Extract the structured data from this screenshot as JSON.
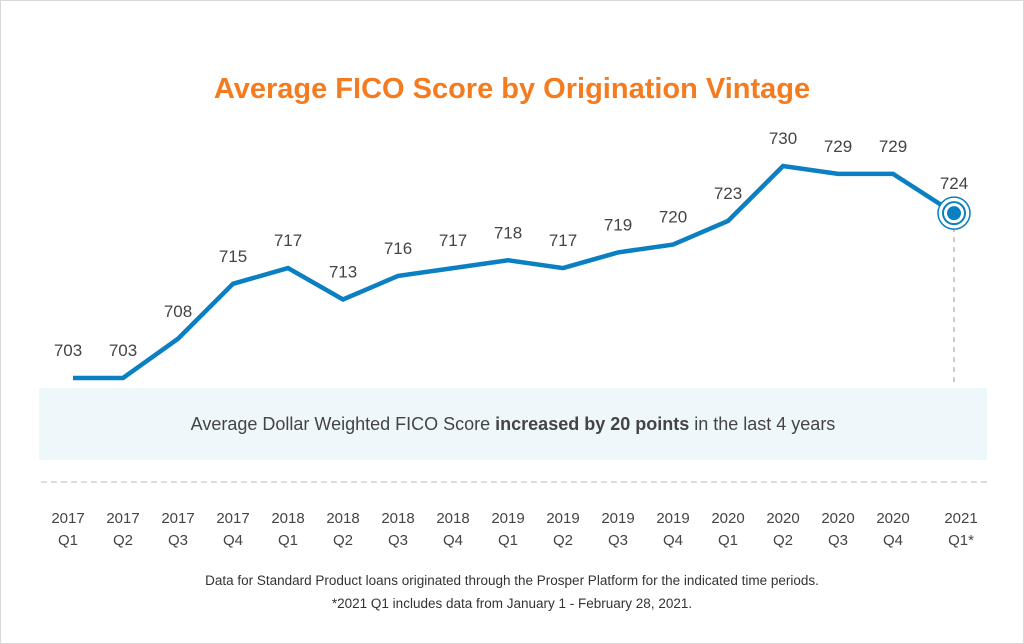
{
  "chart_data": {
    "type": "line",
    "title": "Average FICO Score by Origination Vintage",
    "categories": [
      [
        "2017",
        "Q1"
      ],
      [
        "2017",
        "Q2"
      ],
      [
        "2017",
        "Q3"
      ],
      [
        "2017",
        "Q4"
      ],
      [
        "2018",
        "Q1"
      ],
      [
        "2018",
        "Q2"
      ],
      [
        "2018",
        "Q3"
      ],
      [
        "2018",
        "Q4"
      ],
      [
        "2019",
        "Q1"
      ],
      [
        "2019",
        "Q2"
      ],
      [
        "2019",
        "Q3"
      ],
      [
        "2019",
        "Q4"
      ],
      [
        "2020",
        "Q1"
      ],
      [
        "2020",
        "Q2"
      ],
      [
        "2020",
        "Q3"
      ],
      [
        "2020",
        "Q4"
      ],
      [
        "2021",
        "Q1*"
      ]
    ],
    "values": [
      703,
      703,
      708,
      715,
      717,
      713,
      716,
      717,
      718,
      717,
      719,
      720,
      723,
      730,
      729,
      729,
      724
    ],
    "data_labels": [
      "703",
      "703",
      "708",
      "715",
      "717",
      "713",
      "716",
      "717",
      "718",
      "717",
      "719",
      "720",
      "723",
      "730",
      "729",
      "729",
      "724"
    ],
    "highlighted_point": "2021 Q1*",
    "line_color": "#0a7fc2",
    "title_color": "#f47b20",
    "grid": false,
    "legend": "none"
  },
  "callout": {
    "before": "Average Dollar Weighted FICO Score ",
    "bold": "increased by 20 points",
    "after": " in the last 4 years"
  },
  "footnotes": [
    "Data for Standard Product loans originated through the Prosper Platform for the indicated time periods.",
    "*2021 Q1 includes data from January 1 - February 28, 2021."
  ]
}
